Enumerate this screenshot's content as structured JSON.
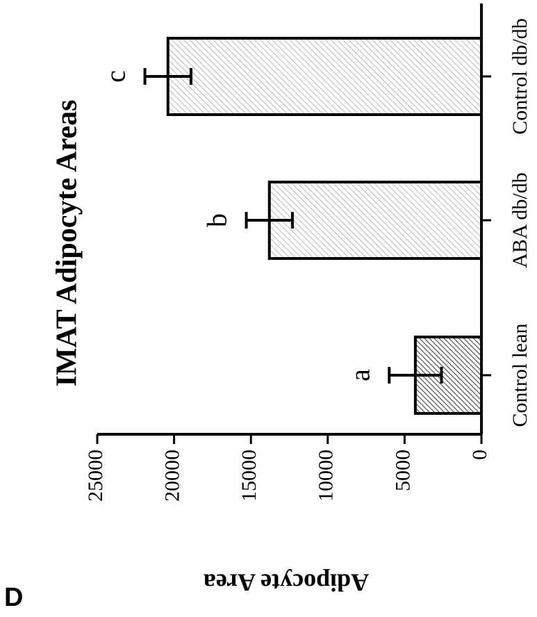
{
  "chart_data": {
    "type": "bar",
    "panel_label": "D",
    "title": "IMAT Adipocyte Areas",
    "ylabel": "Adipocyte Area",
    "categories": [
      "Control lean",
      "ABA db/db",
      "Control db/db"
    ],
    "values": [
      4300,
      13800,
      20400
    ],
    "errors": [
      1700,
      1500,
      1500
    ],
    "annotations": [
      "a",
      "b",
      "c"
    ],
    "colors": [
      "#444444",
      "#9a9a9a",
      "#9a9a9a"
    ],
    "ylim": [
      0,
      25000
    ],
    "yticks": [
      0,
      5000,
      10000,
      15000,
      20000,
      25000
    ],
    "grid": false
  }
}
